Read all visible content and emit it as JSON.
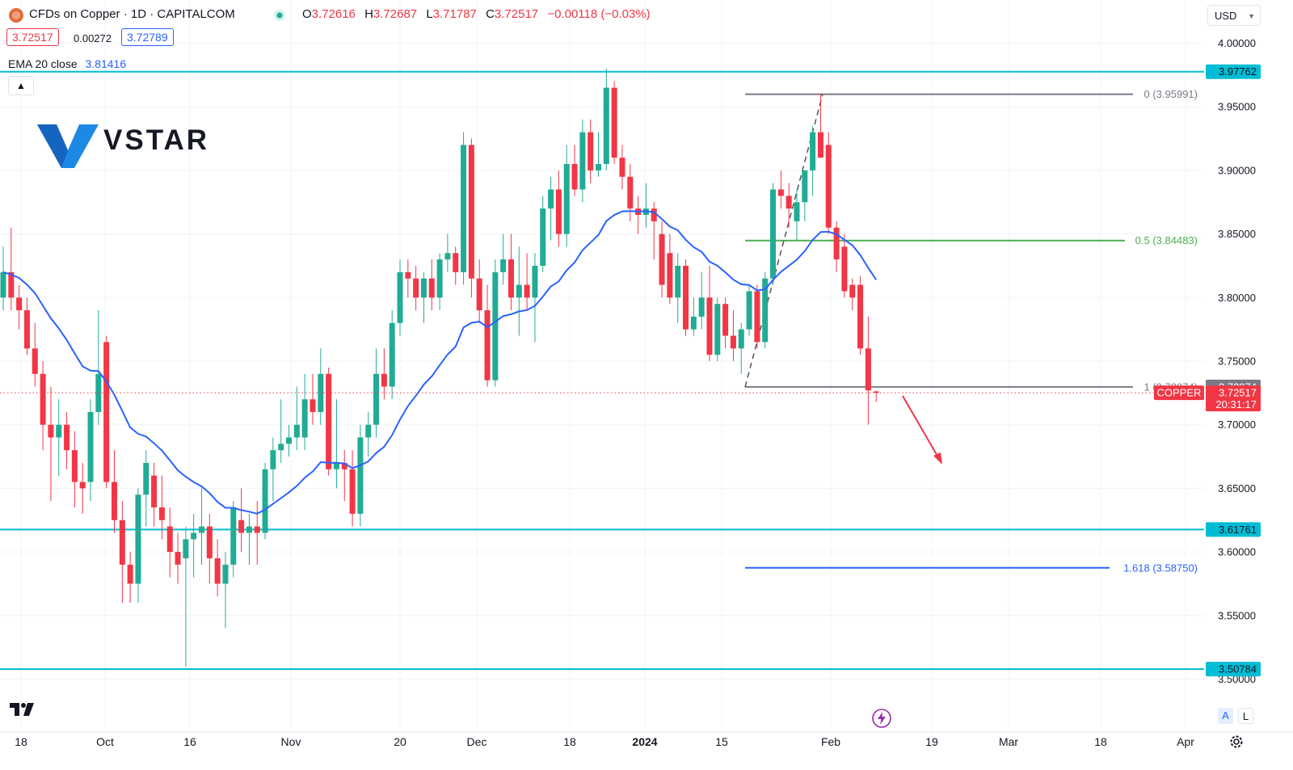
{
  "header": {
    "symbol_title": "CFDs on Copper · 1D · CAPITALCOM",
    "open_label": "O",
    "open": "3.72616",
    "high_label": "H",
    "high": "3.72687",
    "low_label": "L",
    "low": "3.71787",
    "close_label": "C",
    "close": "3.72517",
    "change": "−0.00118 (−0.03%)",
    "sell_price": "3.72517",
    "spread": "0.00272",
    "buy_price": "3.72789",
    "ema_name": "EMA 20 close",
    "ema_value": "3.81416",
    "currency": "USD"
  },
  "brand": {
    "name": "VSTAR"
  },
  "scale_buttons": {
    "auto": "A",
    "log": "L"
  },
  "colors": {
    "up": "#22ab94",
    "down": "#f23645",
    "ema": "#2962ff",
    "horizontal_levels": "#00bcd4",
    "fib_0_5": "#4caf50",
    "fib_1_618": "#2962ff",
    "fib_0_and_1": "#787b86",
    "arrow": "#f23645"
  },
  "icons": {
    "symbol_logo": "copper-logo-icon",
    "market_status": "market-open-dot-icon",
    "collapse": "chevron-up-icon",
    "currency_dropdown": "chevron-down-icon",
    "tv_logo": "tradingview-logo-icon",
    "bolt": "lightning-icon",
    "settings": "gear-icon"
  },
  "chart_data": {
    "type": "candlestick",
    "title": "CFDs on Copper · 1D · CAPITALCOM",
    "y_axis": {
      "ticks": [
        "4.00000",
        "3.95000",
        "3.90000",
        "3.85000",
        "3.80000",
        "3.75000",
        "3.70000",
        "3.65000",
        "3.60000",
        "3.55000",
        "3.50000"
      ],
      "range": [
        3.495,
        4.015
      ]
    },
    "x_axis": {
      "ticks": [
        "18",
        "Oct",
        "16",
        "Nov",
        "20",
        "Dec",
        "18",
        "2024",
        "15",
        "Feb",
        "19",
        "Mar",
        "18",
        "Apr"
      ]
    },
    "price_tags": [
      {
        "label": "3.97762",
        "kind": "level"
      },
      {
        "label": "3.72974",
        "kind": "fib"
      },
      {
        "label": "3.72517",
        "kind": "last",
        "countdown": "20:31:17",
        "symbol": "COPPER"
      },
      {
        "label": "3.61761",
        "kind": "level"
      },
      {
        "label": "3.50784",
        "kind": "level"
      }
    ],
    "horizontal_levels": [
      3.97762,
      3.61761,
      3.50784
    ],
    "fibonacci": [
      {
        "ratio_label": "0 (3.95991)",
        "price": 3.95991
      },
      {
        "ratio_label": "0.5 (3.84483)",
        "price": 3.84483
      },
      {
        "ratio_label": "1 (3.72974)",
        "price": 3.72974
      },
      {
        "ratio_label": "1.618 (3.58750)",
        "price": 3.5875
      }
    ],
    "ema20_last": 3.81416,
    "candles": [
      {
        "o": 3.8,
        "h": 3.84,
        "l": 3.79,
        "c": 3.82
      },
      {
        "o": 3.82,
        "h": 3.855,
        "l": 3.79,
        "c": 3.8
      },
      {
        "o": 3.8,
        "h": 3.81,
        "l": 3.775,
        "c": 3.79
      },
      {
        "o": 3.79,
        "h": 3.8,
        "l": 3.755,
        "c": 3.76
      },
      {
        "o": 3.76,
        "h": 3.78,
        "l": 3.73,
        "c": 3.74
      },
      {
        "o": 3.74,
        "h": 3.75,
        "l": 3.68,
        "c": 3.7
      },
      {
        "o": 3.7,
        "h": 3.73,
        "l": 3.64,
        "c": 3.69
      },
      {
        "o": 3.69,
        "h": 3.72,
        "l": 3.66,
        "c": 3.7
      },
      {
        "o": 3.7,
        "h": 3.71,
        "l": 3.665,
        "c": 3.68
      },
      {
        "o": 3.68,
        "h": 3.695,
        "l": 3.635,
        "c": 3.655
      },
      {
        "o": 3.655,
        "h": 3.67,
        "l": 3.63,
        "c": 3.65
      },
      {
        "o": 3.655,
        "h": 3.72,
        "l": 3.64,
        "c": 3.71
      },
      {
        "o": 3.71,
        "h": 3.79,
        "l": 3.7,
        "c": 3.74
      },
      {
        "o": 3.765,
        "h": 3.77,
        "l": 3.65,
        "c": 3.655
      },
      {
        "o": 3.655,
        "h": 3.68,
        "l": 3.615,
        "c": 3.625
      },
      {
        "o": 3.625,
        "h": 3.64,
        "l": 3.56,
        "c": 3.59
      },
      {
        "o": 3.59,
        "h": 3.6,
        "l": 3.56,
        "c": 3.575
      },
      {
        "o": 3.575,
        "h": 3.65,
        "l": 3.56,
        "c": 3.645
      },
      {
        "o": 3.645,
        "h": 3.68,
        "l": 3.62,
        "c": 3.67
      },
      {
        "o": 3.66,
        "h": 3.67,
        "l": 3.62,
        "c": 3.635
      },
      {
        "o": 3.635,
        "h": 3.66,
        "l": 3.61,
        "c": 3.625
      },
      {
        "o": 3.62,
        "h": 3.635,
        "l": 3.58,
        "c": 3.6
      },
      {
        "o": 3.6,
        "h": 3.615,
        "l": 3.575,
        "c": 3.59
      },
      {
        "o": 3.595,
        "h": 3.62,
        "l": 3.51,
        "c": 3.61
      },
      {
        "o": 3.61,
        "h": 3.63,
        "l": 3.58,
        "c": 3.615
      },
      {
        "o": 3.615,
        "h": 3.65,
        "l": 3.59,
        "c": 3.62
      },
      {
        "o": 3.62,
        "h": 3.63,
        "l": 3.575,
        "c": 3.595
      },
      {
        "o": 3.595,
        "h": 3.61,
        "l": 3.565,
        "c": 3.575
      },
      {
        "o": 3.575,
        "h": 3.6,
        "l": 3.54,
        "c": 3.59
      },
      {
        "o": 3.59,
        "h": 3.64,
        "l": 3.58,
        "c": 3.635
      },
      {
        "o": 3.625,
        "h": 3.65,
        "l": 3.6,
        "c": 3.615
      },
      {
        "o": 3.615,
        "h": 3.63,
        "l": 3.59,
        "c": 3.62
      },
      {
        "o": 3.62,
        "h": 3.64,
        "l": 3.59,
        "c": 3.615
      },
      {
        "o": 3.615,
        "h": 3.67,
        "l": 3.61,
        "c": 3.665
      },
      {
        "o": 3.665,
        "h": 3.69,
        "l": 3.64,
        "c": 3.68
      },
      {
        "o": 3.68,
        "h": 3.72,
        "l": 3.67,
        "c": 3.685
      },
      {
        "o": 3.685,
        "h": 3.7,
        "l": 3.675,
        "c": 3.69
      },
      {
        "o": 3.69,
        "h": 3.73,
        "l": 3.68,
        "c": 3.7
      },
      {
        "o": 3.69,
        "h": 3.74,
        "l": 3.68,
        "c": 3.72
      },
      {
        "o": 3.72,
        "h": 3.74,
        "l": 3.7,
        "c": 3.71
      },
      {
        "o": 3.71,
        "h": 3.76,
        "l": 3.7,
        "c": 3.74
      },
      {
        "o": 3.74,
        "h": 3.745,
        "l": 3.66,
        "c": 3.665
      },
      {
        "o": 3.665,
        "h": 3.72,
        "l": 3.65,
        "c": 3.67
      },
      {
        "o": 3.67,
        "h": 3.68,
        "l": 3.64,
        "c": 3.665
      },
      {
        "o": 3.665,
        "h": 3.68,
        "l": 3.62,
        "c": 3.63
      },
      {
        "o": 3.63,
        "h": 3.7,
        "l": 3.62,
        "c": 3.69
      },
      {
        "o": 3.69,
        "h": 3.71,
        "l": 3.675,
        "c": 3.7
      },
      {
        "o": 3.7,
        "h": 3.76,
        "l": 3.69,
        "c": 3.74
      },
      {
        "o": 3.74,
        "h": 3.76,
        "l": 3.72,
        "c": 3.73
      },
      {
        "o": 3.73,
        "h": 3.79,
        "l": 3.72,
        "c": 3.78
      },
      {
        "o": 3.78,
        "h": 3.83,
        "l": 3.77,
        "c": 3.82
      },
      {
        "o": 3.82,
        "h": 3.83,
        "l": 3.8,
        "c": 3.815
      },
      {
        "o": 3.815,
        "h": 3.825,
        "l": 3.79,
        "c": 3.8
      },
      {
        "o": 3.8,
        "h": 3.82,
        "l": 3.78,
        "c": 3.815
      },
      {
        "o": 3.815,
        "h": 3.83,
        "l": 3.79,
        "c": 3.8
      },
      {
        "o": 3.8,
        "h": 3.835,
        "l": 3.79,
        "c": 3.83
      },
      {
        "o": 3.83,
        "h": 3.85,
        "l": 3.82,
        "c": 3.835
      },
      {
        "o": 3.835,
        "h": 3.84,
        "l": 3.81,
        "c": 3.82
      },
      {
        "o": 3.82,
        "h": 3.93,
        "l": 3.81,
        "c": 3.92
      },
      {
        "o": 3.92,
        "h": 3.925,
        "l": 3.8,
        "c": 3.815
      },
      {
        "o": 3.815,
        "h": 3.83,
        "l": 3.78,
        "c": 3.79
      },
      {
        "o": 3.79,
        "h": 3.81,
        "l": 3.73,
        "c": 3.735
      },
      {
        "o": 3.735,
        "h": 3.83,
        "l": 3.73,
        "c": 3.82
      },
      {
        "o": 3.82,
        "h": 3.85,
        "l": 3.81,
        "c": 3.83
      },
      {
        "o": 3.83,
        "h": 3.85,
        "l": 3.79,
        "c": 3.8
      },
      {
        "o": 3.8,
        "h": 3.84,
        "l": 3.77,
        "c": 3.81
      },
      {
        "o": 3.81,
        "h": 3.835,
        "l": 3.79,
        "c": 3.8
      },
      {
        "o": 3.8,
        "h": 3.835,
        "l": 3.765,
        "c": 3.825
      },
      {
        "o": 3.825,
        "h": 3.88,
        "l": 3.82,
        "c": 3.87
      },
      {
        "o": 3.87,
        "h": 3.895,
        "l": 3.845,
        "c": 3.885
      },
      {
        "o": 3.885,
        "h": 3.9,
        "l": 3.84,
        "c": 3.85
      },
      {
        "o": 3.85,
        "h": 3.92,
        "l": 3.84,
        "c": 3.905
      },
      {
        "o": 3.905,
        "h": 3.92,
        "l": 3.88,
        "c": 3.885
      },
      {
        "o": 3.885,
        "h": 3.94,
        "l": 3.875,
        "c": 3.93
      },
      {
        "o": 3.93,
        "h": 3.94,
        "l": 3.89,
        "c": 3.9
      },
      {
        "o": 3.9,
        "h": 3.93,
        "l": 3.895,
        "c": 3.905
      },
      {
        "o": 3.905,
        "h": 3.98,
        "l": 3.9,
        "c": 3.965
      },
      {
        "o": 3.965,
        "h": 3.97,
        "l": 3.905,
        "c": 3.91
      },
      {
        "o": 3.91,
        "h": 3.92,
        "l": 3.885,
        "c": 3.895
      },
      {
        "o": 3.895,
        "h": 3.905,
        "l": 3.86,
        "c": 3.87
      },
      {
        "o": 3.87,
        "h": 3.88,
        "l": 3.85,
        "c": 3.865
      },
      {
        "o": 3.865,
        "h": 3.89,
        "l": 3.855,
        "c": 3.87
      },
      {
        "o": 3.87,
        "h": 3.875,
        "l": 3.83,
        "c": 3.86
      },
      {
        "o": 3.85,
        "h": 3.86,
        "l": 3.8,
        "c": 3.81
      },
      {
        "o": 3.835,
        "h": 3.85,
        "l": 3.795,
        "c": 3.8
      },
      {
        "o": 3.8,
        "h": 3.835,
        "l": 3.78,
        "c": 3.825
      },
      {
        "o": 3.825,
        "h": 3.83,
        "l": 3.77,
        "c": 3.775
      },
      {
        "o": 3.775,
        "h": 3.8,
        "l": 3.77,
        "c": 3.785
      },
      {
        "o": 3.785,
        "h": 3.82,
        "l": 3.775,
        "c": 3.8
      },
      {
        "o": 3.8,
        "h": 3.825,
        "l": 3.75,
        "c": 3.755
      },
      {
        "o": 3.755,
        "h": 3.8,
        "l": 3.75,
        "c": 3.795
      },
      {
        "o": 3.795,
        "h": 3.8,
        "l": 3.76,
        "c": 3.77
      },
      {
        "o": 3.77,
        "h": 3.79,
        "l": 3.75,
        "c": 3.76
      },
      {
        "o": 3.76,
        "h": 3.78,
        "l": 3.74,
        "c": 3.775
      },
      {
        "o": 3.775,
        "h": 3.81,
        "l": 3.77,
        "c": 3.805
      },
      {
        "o": 3.805,
        "h": 3.81,
        "l": 3.76,
        "c": 3.765
      },
      {
        "o": 3.765,
        "h": 3.82,
        "l": 3.76,
        "c": 3.815
      },
      {
        "o": 3.815,
        "h": 3.89,
        "l": 3.81,
        "c": 3.885
      },
      {
        "o": 3.885,
        "h": 3.9,
        "l": 3.87,
        "c": 3.88
      },
      {
        "o": 3.88,
        "h": 3.89,
        "l": 3.855,
        "c": 3.87
      },
      {
        "o": 3.86,
        "h": 3.885,
        "l": 3.845,
        "c": 3.875
      },
      {
        "o": 3.875,
        "h": 3.9,
        "l": 3.86,
        "c": 3.9
      },
      {
        "o": 3.9,
        "h": 3.935,
        "l": 3.88,
        "c": 3.93
      },
      {
        "o": 3.93,
        "h": 3.96,
        "l": 3.91,
        "c": 3.91
      },
      {
        "o": 3.92,
        "h": 3.93,
        "l": 3.85,
        "c": 3.855
      },
      {
        "o": 3.855,
        "h": 3.86,
        "l": 3.82,
        "c": 3.83
      },
      {
        "o": 3.84,
        "h": 3.85,
        "l": 3.8,
        "c": 3.805
      },
      {
        "o": 3.81,
        "h": 3.815,
        "l": 3.79,
        "c": 3.8
      },
      {
        "o": 3.81,
        "h": 3.817,
        "l": 3.755,
        "c": 3.76
      },
      {
        "o": 3.76,
        "h": 3.785,
        "l": 3.7,
        "c": 3.727
      },
      {
        "o": 3.72616,
        "h": 3.72687,
        "l": 3.71787,
        "c": 3.72517
      }
    ]
  }
}
